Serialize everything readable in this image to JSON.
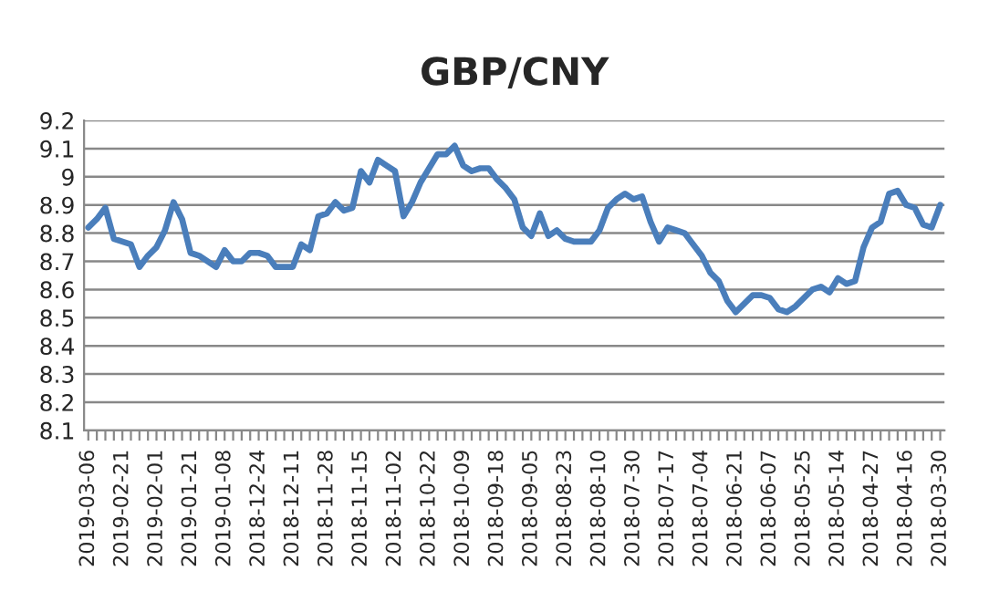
{
  "chart_data": {
    "type": "line",
    "title": "GBP/CNY",
    "categories": [
      "2019-03-06",
      null,
      null,
      null,
      "2019-02-21",
      null,
      null,
      null,
      "2019-02-01",
      null,
      null,
      null,
      "2019-01-21",
      null,
      null,
      null,
      "2019-01-08",
      null,
      null,
      null,
      "2018-12-24",
      null,
      null,
      null,
      "2018-12-11",
      null,
      null,
      null,
      "2018-11-28",
      null,
      null,
      null,
      "2018-11-15",
      null,
      null,
      null,
      "2018-11-02",
      null,
      null,
      null,
      "2018-10-22",
      null,
      null,
      null,
      "2018-10-09",
      null,
      null,
      null,
      "2018-09-18",
      null,
      null,
      null,
      "2018-09-05",
      null,
      null,
      null,
      "2018-08-23",
      null,
      null,
      null,
      "2018-08-10",
      null,
      null,
      null,
      "2018-07-30",
      null,
      null,
      null,
      "2018-07-17",
      null,
      null,
      null,
      "2018-07-04",
      null,
      null,
      null,
      "2018-06-21",
      null,
      null,
      null,
      "2018-06-07",
      null,
      null,
      null,
      "2018-05-25",
      null,
      null,
      null,
      "2018-05-14",
      null,
      null,
      null,
      "2018-04-27",
      null,
      null,
      null,
      "2018-04-16",
      null,
      null,
      null,
      "2018-03-30"
    ],
    "series": [
      {
        "color": "#4a7ebb",
        "values": [
          8.82,
          8.85,
          8.89,
          8.78,
          8.77,
          8.76,
          8.68,
          8.72,
          8.75,
          8.81,
          8.91,
          8.85,
          8.73,
          8.72,
          8.7,
          8.68,
          8.74,
          8.7,
          8.7,
          8.73,
          8.73,
          8.72,
          8.68,
          8.68,
          8.68,
          8.76,
          8.74,
          8.86,
          8.87,
          8.91,
          8.88,
          8.89,
          9.02,
          8.98,
          9.06,
          9.04,
          9.02,
          8.86,
          8.91,
          8.98,
          9.03,
          9.08,
          9.08,
          9.11,
          9.04,
          9.02,
          9.03,
          9.03,
          8.99,
          8.96,
          8.92,
          8.82,
          8.79,
          8.87,
          8.79,
          8.81,
          8.78,
          8.77,
          8.77,
          8.77,
          8.81,
          8.89,
          8.92,
          8.94,
          8.92,
          8.93,
          8.84,
          8.77,
          8.82,
          8.81,
          8.8,
          8.76,
          8.72,
          8.66,
          8.63,
          8.56,
          8.52,
          8.55,
          8.58,
          8.58,
          8.57,
          8.53,
          8.52,
          8.54,
          8.57,
          8.6,
          8.61,
          8.59,
          8.64,
          8.62,
          8.63,
          8.75,
          8.82,
          8.84,
          8.94,
          8.95,
          8.9,
          8.89,
          8.83,
          8.82,
          8.9
        ]
      }
    ],
    "ylim": [
      8.1,
      9.2
    ],
    "yticks": [
      8.1,
      8.2,
      8.3,
      8.4,
      8.5,
      8.6,
      8.7,
      8.8,
      8.9,
      {
        "value": 9.0,
        "label": "9"
      },
      9.1,
      9.2
    ],
    "grid": "y",
    "line_style": "solid",
    "marker": "none"
  }
}
